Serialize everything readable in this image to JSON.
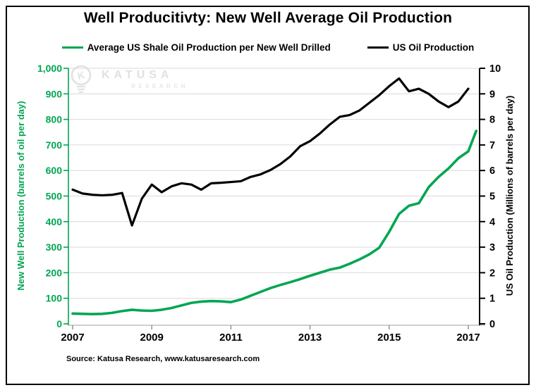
{
  "header": {
    "title": "Well Producitivty: New Well Average Oil Production"
  },
  "legend": [
    {
      "label": "Average US Shale Oil Production per New Well Drilled",
      "color": "#00a651"
    },
    {
      "label": "US Oil Production",
      "color": "#000000"
    }
  ],
  "watermark": {
    "brand": "KATUSA",
    "sub": "RESEARCH"
  },
  "axes": {
    "left": {
      "title": "New Well Production (barrels of oil per day)",
      "ticks": [
        "1,000",
        "900",
        "800",
        "700",
        "600",
        "500",
        "400",
        "300",
        "200",
        "100",
        "0"
      ],
      "color": "#00a651",
      "range": [
        0,
        1000
      ]
    },
    "right": {
      "title": "US Oil Production (Millions of barrels per day)",
      "ticks": [
        "10",
        "9",
        "8",
        "7",
        "6",
        "5",
        "4",
        "3",
        "2",
        "1",
        "0"
      ],
      "color": "#000000",
      "range": [
        0,
        10
      ]
    },
    "x": {
      "tick_labels": [
        "2007",
        "2009",
        "2011",
        "2013",
        "2015",
        "2017"
      ],
      "tick_years": [
        2007,
        2009,
        2011,
        2013,
        2015,
        2017
      ]
    }
  },
  "footer": {
    "source": "Source: Katusa Research, www.katusaresearch.com"
  },
  "colors": {
    "green": "#00a651",
    "black": "#000000",
    "gridline": "#d9d9d9",
    "bottom_axis": "#bfbfbf",
    "bottom_tick": "#8c8c8c",
    "watermark": "#e2e2e2"
  },
  "chart_data": {
    "type": "line",
    "title": "Well Producitivty: New Well Average Oil Production",
    "xlabel": "",
    "x_range": [
      2007,
      2017.3
    ],
    "grid": "horizontal",
    "legend_position": "top",
    "series": [
      {
        "name": "Average US Shale Oil Production per New Well Drilled",
        "axis": "left",
        "ylabel": "New Well Production (barrels of oil per day)",
        "ylim": [
          0,
          1000
        ],
        "color": "#00a651",
        "x": [
          2007.0,
          2007.25,
          2007.5,
          2007.75,
          2008.0,
          2008.25,
          2008.5,
          2008.75,
          2009.0,
          2009.25,
          2009.5,
          2009.75,
          2010.0,
          2010.25,
          2010.5,
          2010.75,
          2011.0,
          2011.25,
          2011.5,
          2011.75,
          2012.0,
          2012.25,
          2012.5,
          2012.75,
          2013.0,
          2013.25,
          2013.5,
          2013.75,
          2014.0,
          2014.25,
          2014.5,
          2014.75,
          2015.0,
          2015.25,
          2015.5,
          2015.75,
          2016.0,
          2016.25,
          2016.5,
          2016.75,
          2017.0,
          2017.2
        ],
        "values": [
          40,
          39,
          38,
          39,
          43,
          50,
          55,
          52,
          51,
          55,
          62,
          72,
          82,
          87,
          89,
          88,
          85,
          95,
          110,
          125,
          140,
          152,
          163,
          175,
          188,
          200,
          212,
          220,
          235,
          252,
          272,
          298,
          360,
          430,
          462,
          472,
          535,
          575,
          608,
          648,
          675,
          755
        ]
      },
      {
        "name": "US Oil Production",
        "axis": "right",
        "ylabel": "US Oil Production (Millions of barrels per day)",
        "ylim": [
          0,
          10
        ],
        "color": "#000000",
        "x": [
          2007.0,
          2007.25,
          2007.5,
          2007.75,
          2008.0,
          2008.25,
          2008.5,
          2008.75,
          2009.0,
          2009.25,
          2009.5,
          2009.75,
          2010.0,
          2010.25,
          2010.5,
          2010.75,
          2011.0,
          2011.25,
          2011.5,
          2011.75,
          2012.0,
          2012.25,
          2012.5,
          2012.75,
          2013.0,
          2013.25,
          2013.5,
          2013.75,
          2014.0,
          2014.25,
          2014.5,
          2014.75,
          2015.0,
          2015.25,
          2015.5,
          2015.75,
          2016.0,
          2016.25,
          2016.5,
          2016.75,
          2017.0
        ],
        "values": [
          5.25,
          5.1,
          5.05,
          5.03,
          5.05,
          5.12,
          3.85,
          4.9,
          5.45,
          5.15,
          5.38,
          5.5,
          5.45,
          5.25,
          5.5,
          5.52,
          5.55,
          5.58,
          5.75,
          5.85,
          6.02,
          6.25,
          6.55,
          6.95,
          7.15,
          7.45,
          7.8,
          8.1,
          8.17,
          8.35,
          8.65,
          8.95,
          9.3,
          9.6,
          9.1,
          9.2,
          9.0,
          8.7,
          8.48,
          8.7,
          9.2
        ]
      }
    ]
  }
}
